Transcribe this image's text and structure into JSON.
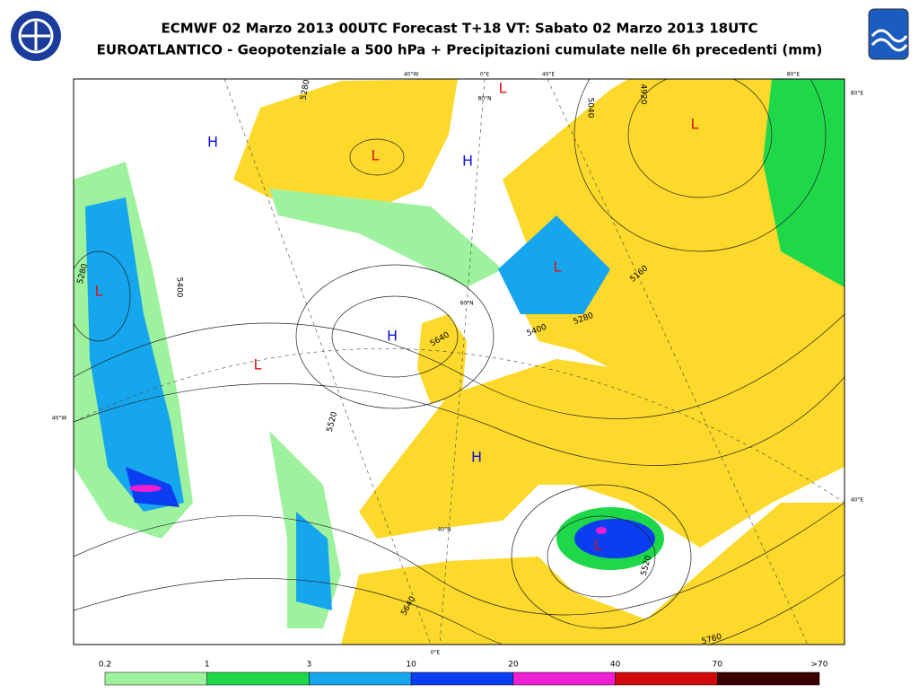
{
  "header": {
    "title": "ECMWF 02 Marzo 2013 00UTC Forecast T+18 VT: Sabato 02 Marzo 2013 18UTC",
    "subtitle": "EUROATLANTICO - Geopotenziale a 500 hPa + Precipitazioni cumulate nelle 6h precedenti (mm)"
  },
  "map": {
    "graticule_labels": [
      "40°W",
      "0°E",
      "40°E",
      "80°E",
      "80°E",
      "40°E",
      "40°W",
      "80°N",
      "60°N",
      "40°N",
      "0°E"
    ],
    "pressure_centers": [
      {
        "label": "H",
        "color": "#1010e0"
      },
      {
        "label": "L",
        "color": "#e01010"
      },
      {
        "label": "L",
        "color": "#e01010"
      },
      {
        "label": "H",
        "color": "#1010e0"
      },
      {
        "label": "L",
        "color": "#e01010"
      },
      {
        "label": "L",
        "color": "#e01010"
      },
      {
        "label": "L",
        "color": "#e01010"
      },
      {
        "label": "H",
        "color": "#1010e0"
      },
      {
        "label": "L",
        "color": "#e01010"
      },
      {
        "label": "H",
        "color": "#1010e0"
      },
      {
        "label": "L",
        "color": "#e01010"
      }
    ],
    "contour_labels": [
      "5280",
      "5400",
      "5520",
      "5640",
      "5760",
      "5520",
      "5400",
      "5280",
      "5160",
      "4920",
      "5040",
      "5640",
      "5280"
    ]
  },
  "legend": {
    "thresholds": [
      "0.2",
      "1",
      "3",
      "10",
      "20",
      "40",
      "70",
      ">70"
    ],
    "colors": [
      "#9ef29e",
      "#1ed84a",
      "#16a6ee",
      "#0a3ef0",
      "#ee1ed2",
      "#d00a0a",
      "#3a0000"
    ]
  }
}
